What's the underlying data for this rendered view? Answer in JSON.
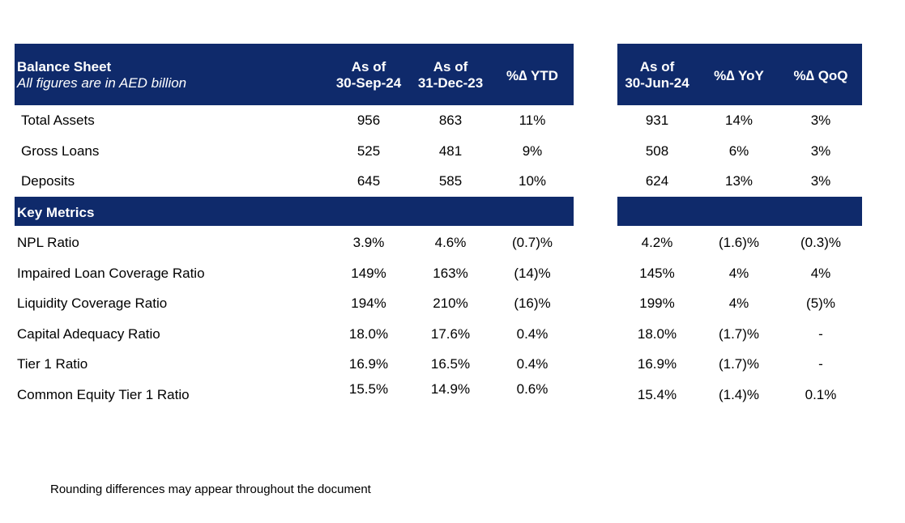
{
  "balance_sheet": {
    "title": "Balance Sheet",
    "subtitle": "All figures are in AED billion",
    "col1": [
      "As of",
      "30-Sep-24"
    ],
    "col2": [
      "As of",
      "31-Dec-23"
    ],
    "col3": "%∆ YTD",
    "col4": [
      "As of",
      "30-Jun-24"
    ],
    "col5": "%∆ YoY",
    "col6": "%∆ QoQ",
    "rows": [
      {
        "label": "Total Assets",
        "values": [
          "956",
          "863",
          "11%",
          "931",
          "14%",
          "3%"
        ]
      },
      {
        "label": "Gross Loans",
        "values": [
          "525",
          "481",
          "9%",
          "508",
          "6%",
          "3%"
        ]
      },
      {
        "label": "Deposits",
        "values": [
          "645",
          "585",
          "10%",
          "624",
          "13%",
          "3%"
        ]
      }
    ]
  },
  "key_metrics": {
    "title": "Key Metrics",
    "rows": [
      {
        "label": "NPL Ratio",
        "values": [
          "3.9%",
          "4.6%",
          "(0.7)%",
          "4.2%",
          "(1.6)%",
          "(0.3)%"
        ]
      },
      {
        "label": "Impaired Loan Coverage Ratio",
        "values": [
          "149%",
          "163%",
          "(14)%",
          "145%",
          "4%",
          "4%"
        ]
      },
      {
        "label": "Liquidity Coverage Ratio",
        "values": [
          "194%",
          "210%",
          "(16)%",
          "199%",
          "4%",
          "(5)%"
        ]
      },
      {
        "label": "Capital Adequacy Ratio",
        "values": [
          "18.0%",
          "17.6%",
          "0.4%",
          "18.0%",
          "(1.7)%",
          "-"
        ]
      },
      {
        "label": "Tier 1 Ratio",
        "values": [
          "16.9%",
          "16.5%",
          "0.4%",
          "16.9%",
          "(1.7)%",
          "-"
        ]
      },
      {
        "label": "Common Equity Tier 1 Ratio",
        "values": [
          "15.5%",
          "14.9%",
          "0.6%",
          "15.4%",
          "(1.4)%",
          "0.1%"
        ]
      }
    ]
  },
  "footnote": "Rounding differences may appear throughout the document"
}
